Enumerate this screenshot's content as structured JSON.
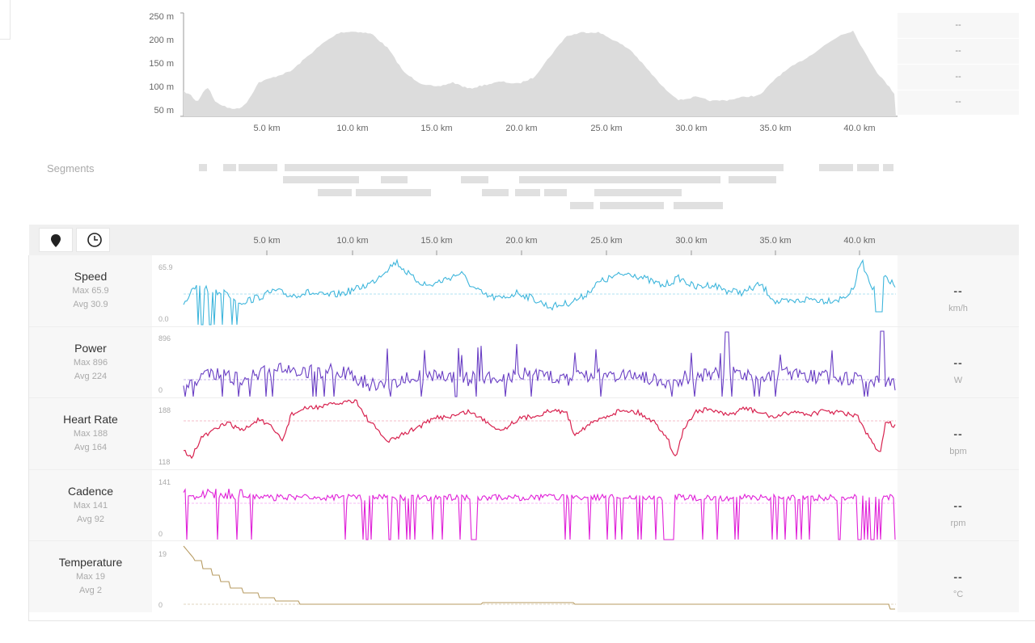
{
  "elevation": {
    "y_labels": [
      "250 m",
      "200 m",
      "150 m",
      "100 m",
      "50 m"
    ],
    "x_labels": [
      "5.0 km",
      "10.0 km",
      "15.0 km",
      "20.0 km",
      "25.0 km",
      "30.0 km",
      "35.0 km",
      "40.0 km"
    ],
    "panel_values": [
      "--",
      "--",
      "--",
      "--"
    ],
    "fill_color": "#dcdcdc"
  },
  "segments": {
    "label": "Segments"
  },
  "axis": {
    "x_labels": [
      "5.0 km",
      "10.0 km",
      "15.0 km",
      "20.0 km",
      "25.0 km",
      "30.0 km",
      "35.0 km",
      "40.0 km"
    ],
    "map_button_icon": "map-pin-icon",
    "time_button_icon": "clock-icon"
  },
  "charts": [
    {
      "name": "Speed",
      "max": "Max 65.9",
      "avg": "Avg 30.9",
      "ymax": "65.9",
      "ymin": "0.0",
      "value": "--",
      "unit": "km/h",
      "color": "#3fb6dc"
    },
    {
      "name": "Power",
      "max": "Max 896",
      "avg": "Avg 224",
      "ymax": "896",
      "ymin": "0",
      "value": "--",
      "unit": "W",
      "color": "#6a3fc4"
    },
    {
      "name": "Heart Rate",
      "max": "Max 188",
      "avg": "Avg 164",
      "ymax": "188",
      "ymin": "118",
      "value": "--",
      "unit": "bpm",
      "color": "#d8224f"
    },
    {
      "name": "Cadence",
      "max": "Max 141",
      "avg": "Avg 92",
      "ymax": "141",
      "ymin": "0",
      "value": "--",
      "unit": "rpm",
      "color": "#e020d8"
    },
    {
      "name": "Temperature",
      "max": "Max 19",
      "avg": "Avg 2",
      "ymax": "19",
      "ymin": "0",
      "value": "--",
      "unit": "°C",
      "color": "#b79b62"
    }
  ]
}
